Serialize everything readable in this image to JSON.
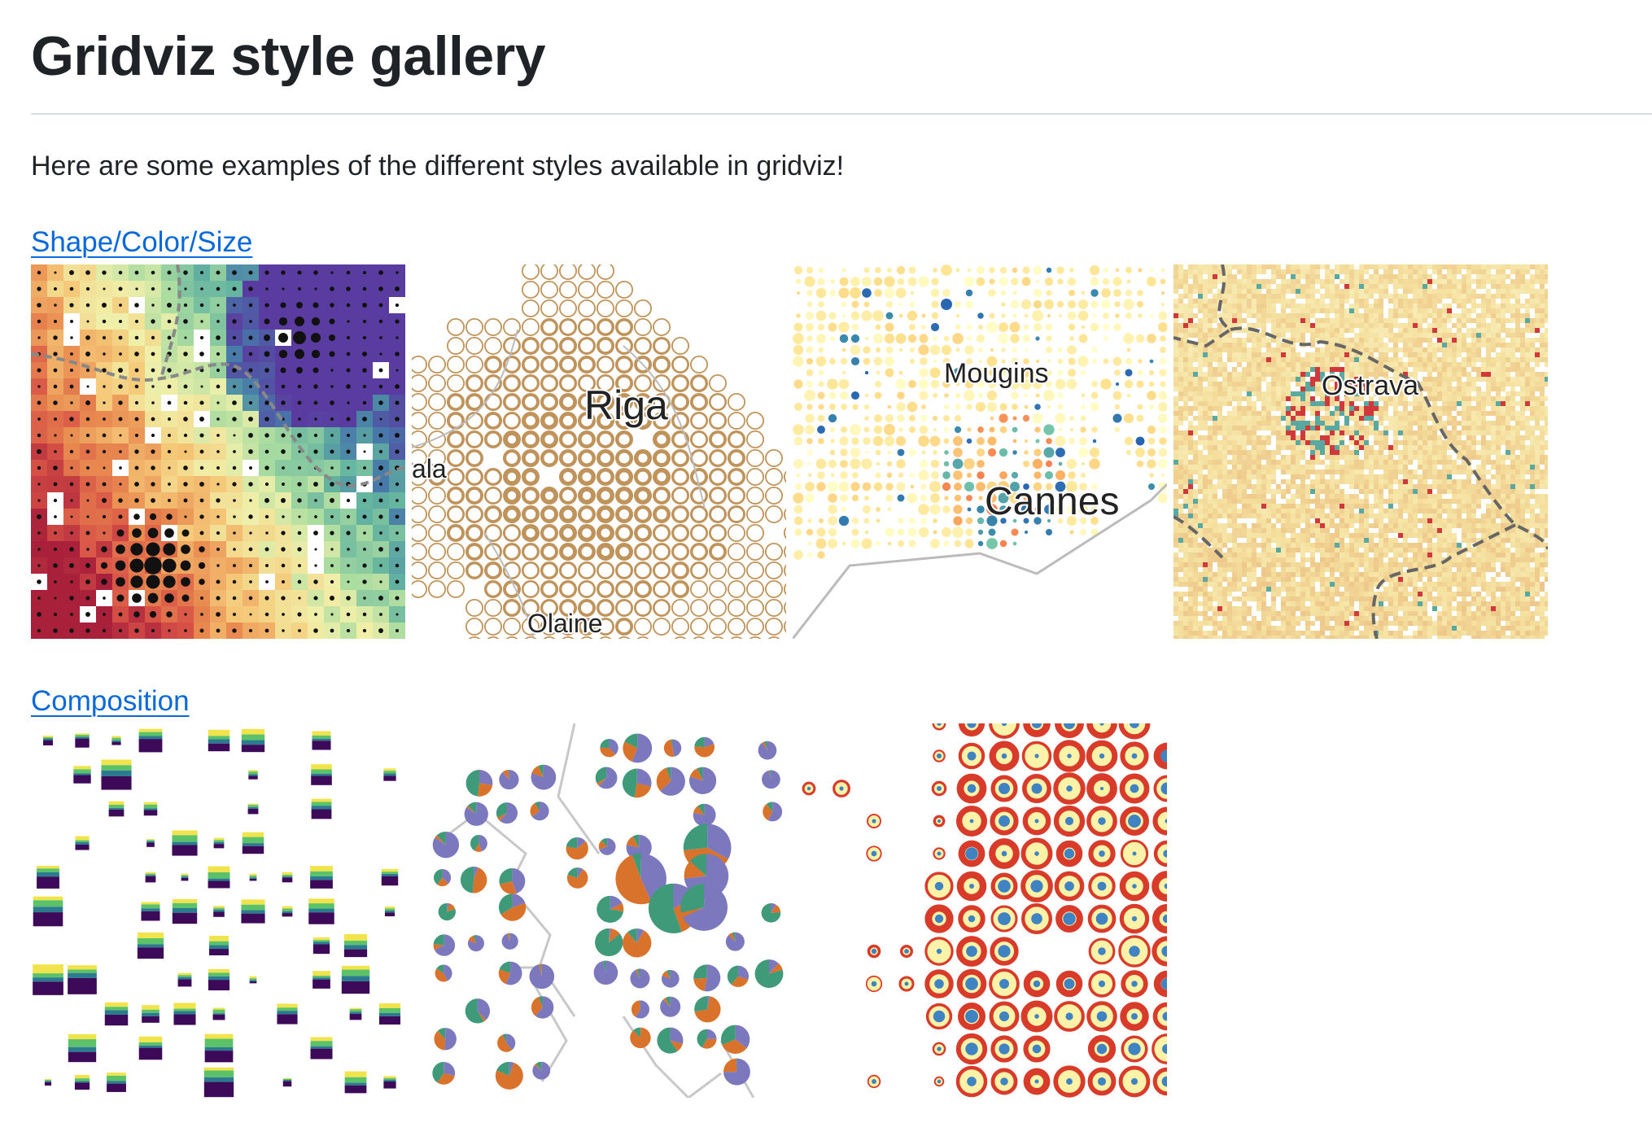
{
  "header": {
    "title": "Gridviz style gallery"
  },
  "intro": {
    "text": "Here are some examples of the different styles available in gridviz!"
  },
  "sections": [
    {
      "title": "Shape/Color/Size"
    },
    {
      "title": "Composition"
    }
  ],
  "map_labels": {
    "riga": "Riga",
    "ala": "ala",
    "olaine": "Olaine",
    "mougins": "Mougins",
    "cannes": "Cannes",
    "ostrava": "Ostrava"
  },
  "colors": {
    "link": "#0969da",
    "heading": "#1f2328",
    "rule": "#d8dee4",
    "ring": "#c0935a",
    "pie_purple": "#7b78bd",
    "pie_orange": "#d9722a",
    "pie_green": "#3e9a78",
    "viridis_dark": "#3d0a5a",
    "red_ring": "#d93b2b",
    "cream": "#fdf3a8",
    "blue_dot": "#3f83c2"
  }
}
